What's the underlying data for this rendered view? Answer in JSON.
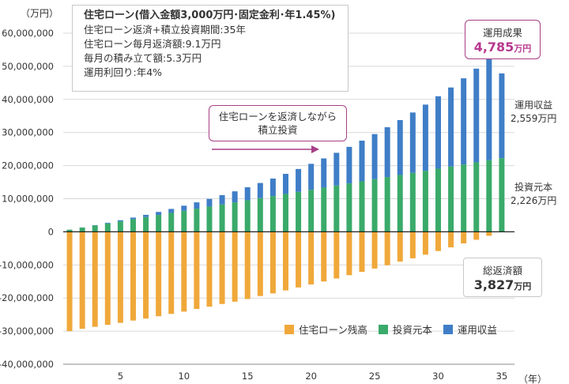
{
  "chart_data": {
    "type": "bar",
    "stacked": true,
    "y_unit_label": "（万円）",
    "x_unit_label": "（年）",
    "ylim": [
      -40000000,
      60000000
    ],
    "yticks": [
      60000000,
      50000000,
      40000000,
      30000000,
      20000000,
      10000000,
      0,
      -10000000,
      -20000000,
      -30000000,
      -40000000
    ],
    "ytick_labels": [
      "60,000,000",
      "50,000,000",
      "40,000,000",
      "30,000,000",
      "20,000,000",
      "10,000,000",
      "0",
      "-10,000,000",
      "-20,000,000",
      "-30,000,000",
      "-40,000,000"
    ],
    "xticks": [
      5,
      10,
      15,
      20,
      25,
      30,
      35
    ],
    "x": [
      1,
      2,
      3,
      4,
      5,
      6,
      7,
      8,
      9,
      10,
      11,
      12,
      13,
      14,
      15,
      16,
      17,
      18,
      19,
      20,
      21,
      22,
      23,
      24,
      25,
      26,
      27,
      28,
      29,
      30,
      31,
      32,
      33,
      34,
      35
    ],
    "series": [
      {
        "name": "住宅ローン残高",
        "color": "#f0a83a",
        "values": [
          -30000000,
          -29300000,
          -28700000,
          -28100000,
          -27500000,
          -26800000,
          -26200000,
          -25500000,
          -24800000,
          -24100000,
          -23300000,
          -22600000,
          -21800000,
          -21100000,
          -20300000,
          -19400000,
          -18600000,
          -17700000,
          -16800000,
          -15900000,
          -15000000,
          -14100000,
          -13100000,
          -12100000,
          -11100000,
          -10100000,
          -9000000,
          -8000000,
          -6900000,
          -5800000,
          -4700000,
          -3500000,
          -2400000,
          -1200000,
          -100000
        ]
      },
      {
        "name": "投資元本",
        "color": "#3aaa6a",
        "values": [
          640000,
          1270000,
          1910000,
          2540000,
          3180000,
          3820000,
          4450000,
          5090000,
          5720000,
          6360000,
          7000000,
          7630000,
          8270000,
          8900000,
          9540000,
          10180000,
          10810000,
          11450000,
          12080000,
          12720000,
          13360000,
          13990000,
          14630000,
          15260000,
          15900000,
          16540000,
          17170000,
          17810000,
          18440000,
          19080000,
          19720000,
          20350000,
          20990000,
          21620000,
          22260000
        ]
      },
      {
        "name": "運用収益",
        "color": "#3f7ec7",
        "values": [
          10000,
          50000,
          100000,
          200000,
          320000,
          480000,
          680000,
          920000,
          1200000,
          1530000,
          1900000,
          2320000,
          2800000,
          3330000,
          3920000,
          4570000,
          5280000,
          6060000,
          6900000,
          7820000,
          8810000,
          9880000,
          11040000,
          12280000,
          13620000,
          15050000,
          16590000,
          18230000,
          19990000,
          21870000,
          23880000,
          26020000,
          28300000,
          30730000,
          25590000
        ]
      }
    ]
  },
  "info": {
    "title": "住宅ローン(借入金額3,000万円･固定金利･年1.45%)",
    "lines": [
      "住宅ローン返済+積立投資期間:35年",
      "住宅ローン毎月返済額:9.1万円",
      "毎月の積み立て額:5.3万円",
      "運用利回り:年4%"
    ]
  },
  "callout": {
    "line1": "住宅ローンを返済しながら",
    "line2": "積立投資"
  },
  "result": {
    "label": "運用成果",
    "value": "4,785",
    "unit": "万円"
  },
  "income": {
    "label": "運用収益",
    "value": "2,559万円"
  },
  "principal": {
    "label": "投資元本",
    "value": "2,226万円"
  },
  "repay": {
    "label": "総返済額",
    "value": "3,827",
    "unit": "万円"
  },
  "legend": [
    "住宅ローン残高",
    "投資元本",
    "運用収益"
  ],
  "colors": {
    "loan": "#f0a83a",
    "principal": "#3aaa6a",
    "income": "#3f7ec7",
    "accent": "#b8388f"
  }
}
